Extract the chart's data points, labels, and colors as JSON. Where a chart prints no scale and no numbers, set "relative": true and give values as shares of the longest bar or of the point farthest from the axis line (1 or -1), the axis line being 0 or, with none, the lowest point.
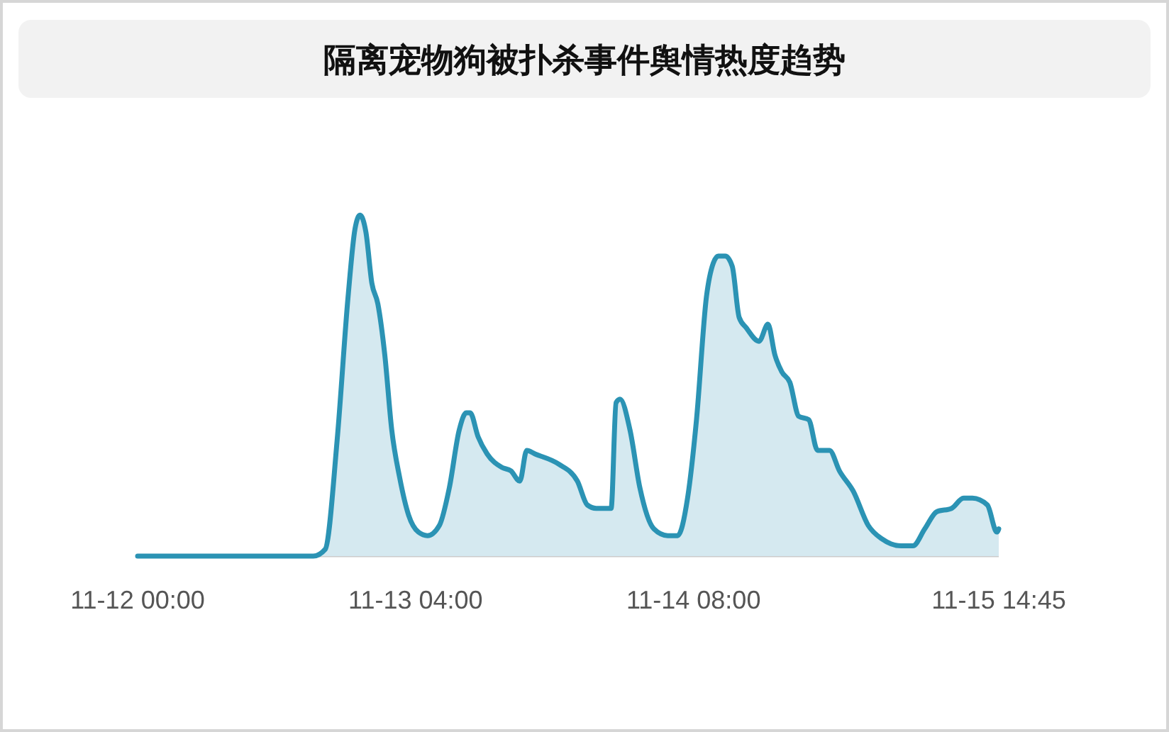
{
  "chart_data": {
    "type": "area",
    "title": "隔离宠物狗被扑杀事件舆情热度趋势",
    "x": [
      "--11-12T00:00",
      "--11-12T17:42",
      "--11-12T18:54",
      "--11-12T20:06",
      "--11-12T21:12",
      "--11-12T21:54",
      "--11-12T22:24",
      "--11-12T23:00",
      "--11-12T23:36",
      "--11-13T00:12",
      "--11-13T00:54",
      "--11-13T01:36",
      "--11-13T02:24",
      "--11-13T03:18",
      "--11-13T04:18",
      "--11-13T05:12",
      "--11-13T06:24",
      "--11-13T07:24",
      "--11-13T08:24",
      "--11-13T09:06",
      "--11-13T09:30",
      "--11-13T10:18",
      "--11-13T11:12",
      "--11-13T12:42",
      "--11-13T13:36",
      "--11-13T14:30",
      "--11-13T15:12",
      "--11-13T16:00",
      "--11-13T18:24",
      "--11-13T20:18",
      "--11-13T21:18",
      "--11-13T22:12",
      "--11-13T23:42",
      "--11-14T00:12",
      "--11-14T00:36",
      "--11-14T01:36",
      "--11-14T02:36",
      "--11-14T04:00",
      "--11-14T05:24",
      "--11-14T06:24",
      "--11-14T07:24",
      "--11-14T08:18",
      "--11-14T09:18",
      "--11-14T10:00",
      "--11-14T10:30",
      "--11-14T11:12",
      "--11-14T11:54",
      "--11-14T12:36",
      "--11-14T13:18",
      "--11-14T14:36",
      "--11-14T15:30",
      "--11-14T16:12",
      "--11-14T16:54",
      "--11-14T17:42",
      "--11-14T18:36",
      "--11-14T19:36",
      "--11-14T20:30",
      "--11-14T21:42",
      "--11-14T22:42",
      "--11-15T00:06",
      "--11-15T01:36",
      "--11-15T03:00",
      "--11-15T04:54",
      "--11-15T06:06",
      "--11-15T07:18",
      "--11-15T08:30",
      "--11-15T10:00",
      "--11-15T11:12",
      "--11-15T12:06",
      "--11-15T13:36",
      "--11-15T14:45"
    ],
    "values": [
      0,
      0,
      0.02,
      0.34,
      0.76,
      0.96,
      1,
      0.95,
      0.8,
      0.74,
      0.59,
      0.37,
      0.23,
      0.12,
      0.07,
      0.06,
      0.09,
      0.2,
      0.37,
      0.42,
      0.42,
      0.35,
      0.3,
      0.26,
      0.25,
      0.22,
      0.31,
      0.3,
      0.27,
      0.22,
      0.15,
      0.14,
      0.14,
      0.45,
      0.46,
      0.37,
      0.2,
      0.08,
      0.06,
      0.06,
      0.17,
      0.4,
      0.76,
      0.86,
      0.88,
      0.88,
      0.85,
      0.7,
      0.67,
      0.63,
      0.68,
      0.59,
      0.54,
      0.51,
      0.41,
      0.4,
      0.31,
      0.31,
      0.25,
      0.19,
      0.09,
      0.05,
      0.03,
      0.03,
      0.08,
      0.13,
      0.14,
      0.17,
      0.17,
      0.15,
      0.08
    ],
    "color": "#2b93b4",
    "relative": true,
    "xlim": [
      "--11-12T00:00",
      "--11-15T14:45"
    ],
    "xticks": [
      {
        "value": "--11-12T00:00",
        "label": "11-12 00:00"
      },
      {
        "value": "--11-13T04:00",
        "label": "11-13 04:00"
      },
      {
        "value": "--11-14T08:00",
        "label": "11-14 08:00"
      },
      {
        "value": "--11-15T14:45",
        "label": "11-15 14:45"
      }
    ],
    "line_style": "solid"
  }
}
